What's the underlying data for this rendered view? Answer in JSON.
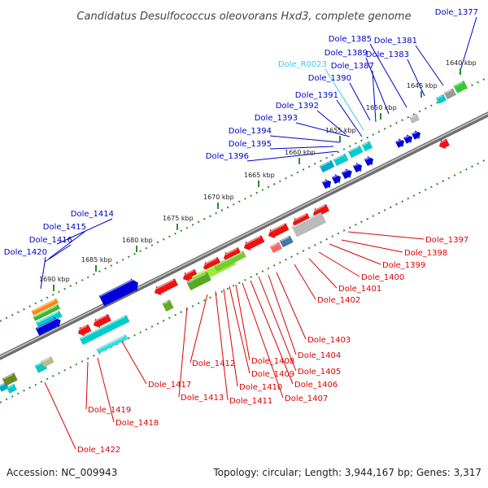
{
  "title": "Candidatus Desulfococcus oleovorans Hxd3, complete genome",
  "footer": {
    "accession": "Accession: NC_009943",
    "summary": "Topology: circular; Length: 3,944,167 bp; Genes: 3,317"
  },
  "colors": {
    "forward_label": "#0000cc",
    "reverse_label": "#dd0000",
    "rna_label": "#33ccee",
    "backbone": "#888888",
    "tick": "#2e8b2e"
  },
  "scale_labels": [
    "1640 kbp",
    "1645 kbp",
    "1650 kbp",
    "1655 kbp",
    "1660 kbp",
    "1665 kbp",
    "1670 kbp",
    "1675 kbp",
    "1680 kbp",
    "1685 kbp",
    "1690 kbp"
  ],
  "forward_genes": [
    "Dole_1377",
    "Dole_1381",
    "Dole_1383",
    "Dole_1385",
    "Dole_1389",
    "Dole_R0023",
    "Dole_1387",
    "Dole_1390",
    "Dole_1391",
    "Dole_1392",
    "Dole_1393",
    "Dole_1394",
    "Dole_1395",
    "Dole_1396",
    "Dole_1414",
    "Dole_1415",
    "Dole_1416",
    "Dole_1420"
  ],
  "reverse_genes": [
    "Dole_1397",
    "Dole_1398",
    "Dole_1399",
    "Dole_1400",
    "Dole_1401",
    "Dole_1402",
    "Dole_1403",
    "Dole_1404",
    "Dole_1405",
    "Dole_1406",
    "Dole_1407",
    "Dole_1408",
    "Dole_1409",
    "Dole_1410",
    "Dole_1411",
    "Dole_1412",
    "Dole_1413",
    "Dole_1417",
    "Dole_1418",
    "Dole_1419",
    "Dole_1422"
  ]
}
